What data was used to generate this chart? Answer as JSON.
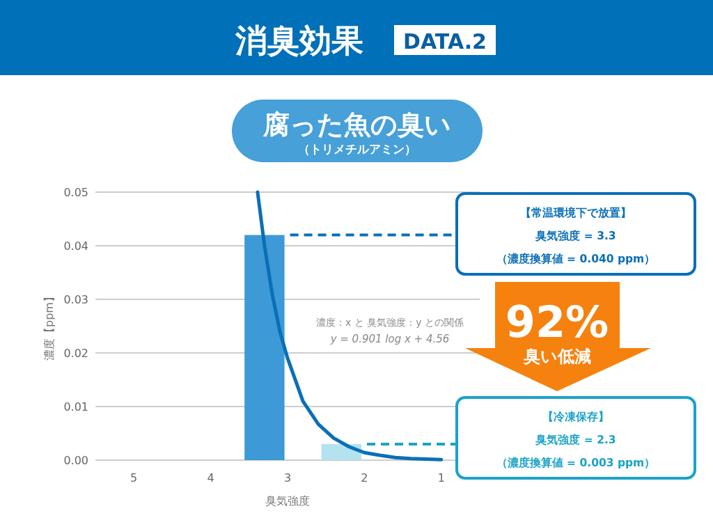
{
  "chart_data": {
    "type": "bar",
    "title": "消臭効果",
    "subtitle": "腐った魚の臭い",
    "xlabel": "臭気強度",
    "ylabel": "濃度【ppm】",
    "xlim": [
      5.5,
      0.5
    ],
    "xticks": [
      5,
      4,
      3,
      2,
      1
    ],
    "ylim": [
      0,
      0.05
    ],
    "yticks": [
      {
        "value": 0,
        "label": "0.00"
      },
      {
        "value": 0.01,
        "label": "0.01"
      },
      {
        "value": 0.02,
        "label": "0.02"
      },
      {
        "value": 0.03,
        "label": "0.03"
      },
      {
        "value": 0.04,
        "label": "0.04"
      },
      {
        "value": 0.05,
        "label": "0.05"
      }
    ],
    "grid": "y",
    "series": [
      {
        "x": [
          3.3,
          2.3
        ],
        "values": [
          0.042,
          0.003
        ],
        "colors": [
          "#3d9ad6",
          "#b3e3ee"
        ]
      },
      {
        "type": "line",
        "color": "#0a6fb8",
        "x": [
          3.39,
          3.3,
          3.2,
          3.1,
          3.0,
          2.8,
          2.6,
          2.4,
          2.2,
          2.0,
          1.8,
          1.6,
          1.4,
          1.2,
          1.0
        ],
        "values": [
          0.05,
          0.04,
          0.031,
          0.024,
          0.019,
          0.011,
          0.0067,
          0.0041,
          0.0025,
          0.0014,
          0.0009,
          0.0005,
          0.0003,
          0.0002,
          0.0001
        ]
      }
    ],
    "ref_lines": [
      {
        "axis": "y",
        "value": 0.042,
        "color": "#0a6fb8",
        "line_style": "dashed"
      },
      {
        "axis": "y",
        "value": 0.003,
        "color": "#1aa3c8",
        "line_style": "dashed"
      }
    ],
    "annotations": [
      "DATA.2",
      "（トリメチルアミン）",
      "【常温環境下で放置】",
      "臭気強度 = 3.3",
      "（濃度換算値 = 0.040 ppm）",
      "【冷凍保存】",
      "臭気強度 = 2.3",
      "（濃度換算値 = 0.003 ppm）",
      "濃度：x と 臭気強度：y との関係",
      "y = 0.901 log x + 4.56",
      "92%",
      "臭い低減"
    ]
  }
}
